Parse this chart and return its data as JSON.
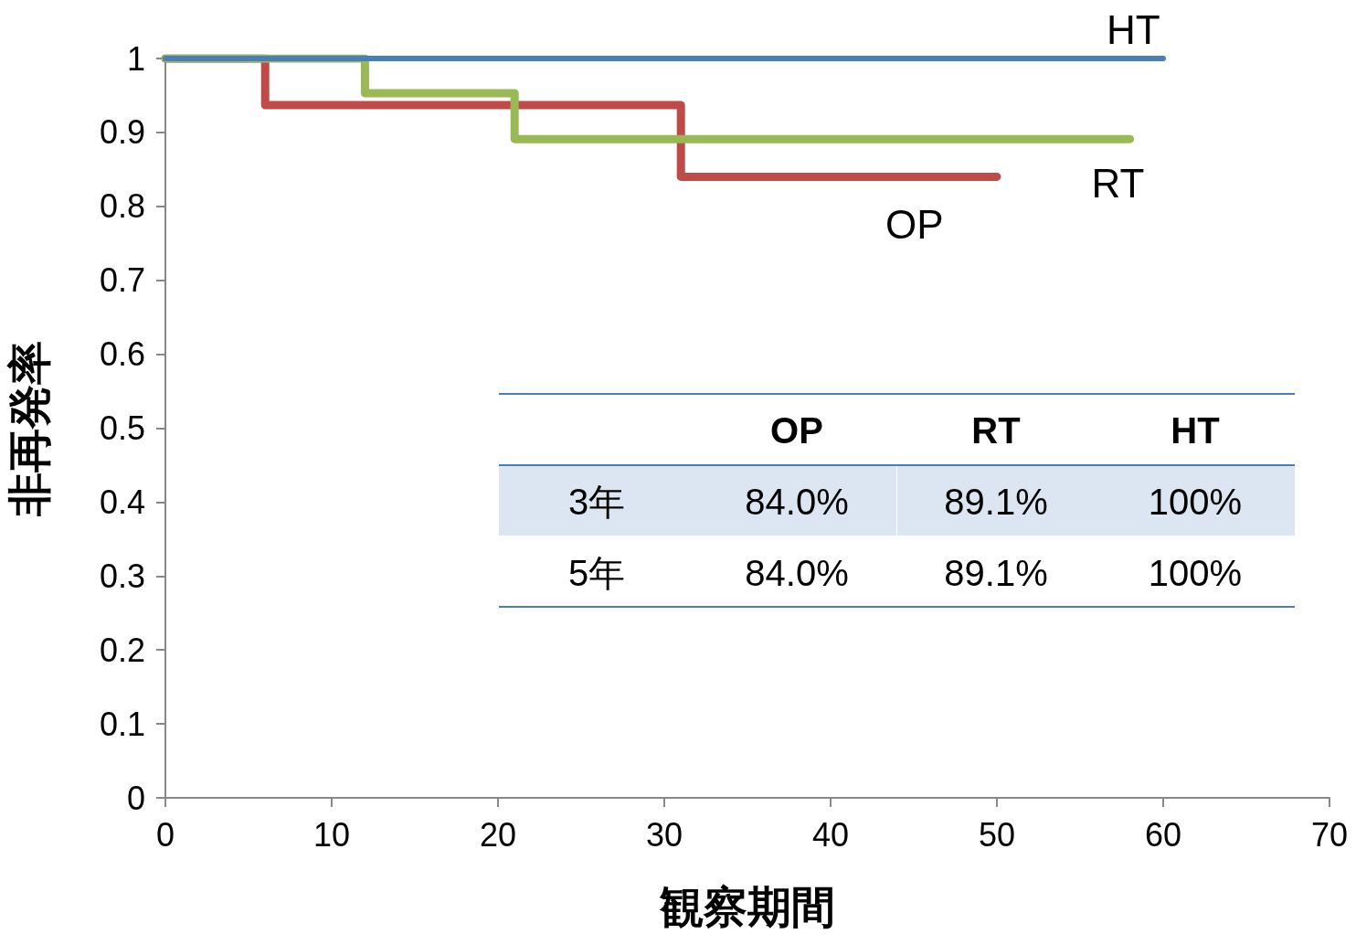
{
  "chart_data": {
    "type": "step",
    "xlabel": "観察期間",
    "ylabel": "非再発率",
    "xlim": [
      0,
      70
    ],
    "xticks": [
      0,
      10,
      20,
      30,
      40,
      50,
      60,
      70
    ],
    "ylim": [
      0,
      1
    ],
    "yticks": [
      0,
      0.1,
      0.2,
      0.3,
      0.4,
      0.5,
      0.6,
      0.7,
      0.8,
      0.9,
      1
    ],
    "grid": false,
    "legend": false,
    "marker": "none",
    "line_style": "solid",
    "series": [
      {
        "name": "HT",
        "color": "#4a7ebb",
        "x": [
          0,
          60
        ],
        "values": [
          1,
          1
        ]
      },
      {
        "name": "RT",
        "color": "#98b954",
        "x": [
          0,
          12,
          21,
          58
        ],
        "values": [
          1,
          0.953,
          0.891,
          0.891
        ]
      },
      {
        "name": "OP",
        "color": "#be4b48",
        "x": [
          0,
          6,
          31,
          50
        ],
        "values": [
          1,
          0.937,
          0.84,
          0.84
        ]
      }
    ],
    "annotations": [
      "OP",
      "RT",
      "HT",
      "3年",
      "84.0%",
      "89.1%",
      "100%",
      "5年",
      "84.0%",
      "89.1%",
      "100%"
    ]
  }
}
